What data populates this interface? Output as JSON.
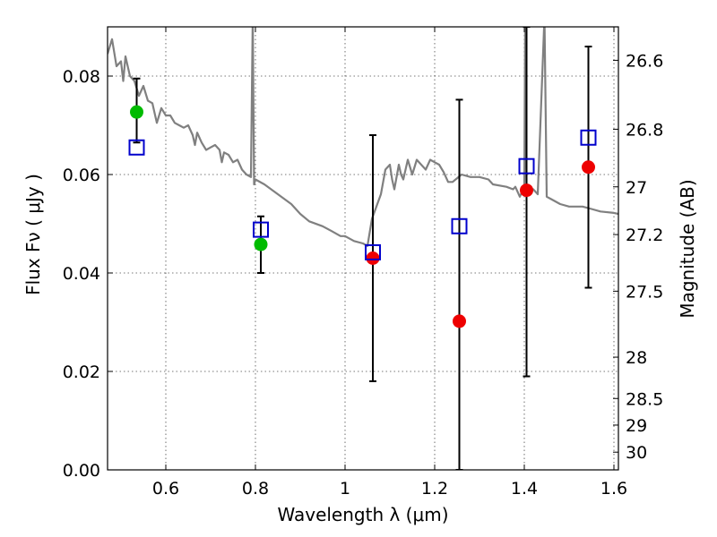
{
  "chart_data": {
    "type": "scatter",
    "xlabel": "Wavelength  λ (μm)",
    "ylabel": "Flux  Fν ( μJy )",
    "ylabel_right": "Magnitude (AB)",
    "xlim": [
      0.47,
      1.61
    ],
    "ylim": [
      0.0,
      0.09
    ],
    "x_ticks": [
      0.6,
      0.8,
      1.0,
      1.2,
      1.4,
      1.6
    ],
    "x_tick_labels": [
      "0.6",
      "0.8",
      "1",
      "1.2",
      "1.4",
      "1.6"
    ],
    "y_ticks": [
      0.0,
      0.02,
      0.04,
      0.06,
      0.08
    ],
    "y_tick_labels": [
      "0.00",
      "0.02",
      "0.04",
      "0.06",
      "0.08"
    ],
    "right_ticks": [
      {
        "label": "26.6",
        "flux": 0.0832
      },
      {
        "label": "26.8",
        "flux": 0.0692
      },
      {
        "label": "27",
        "flux": 0.0575
      },
      {
        "label": "27.2",
        "flux": 0.0478
      },
      {
        "label": "27.5",
        "flux": 0.0363
      },
      {
        "label": "28",
        "flux": 0.0229
      },
      {
        "label": "28.5",
        "flux": 0.0145
      },
      {
        "label": "29",
        "flux": 0.0091
      },
      {
        "label": "30",
        "flux": 0.0036
      }
    ],
    "grid": true,
    "colors": {
      "sed": "#808080",
      "green": "#00bb00",
      "red": "#ee0000",
      "model": "#0000cc",
      "errorbar": "#000000"
    },
    "series": [
      {
        "marker": "line",
        "points": [
          [
            0.47,
            0.0845
          ],
          [
            0.48,
            0.0875
          ],
          [
            0.49,
            0.082
          ],
          [
            0.5,
            0.083
          ],
          [
            0.505,
            0.079
          ],
          [
            0.51,
            0.084
          ],
          [
            0.52,
            0.08
          ],
          [
            0.53,
            0.079
          ],
          [
            0.54,
            0.076
          ],
          [
            0.55,
            0.078
          ],
          [
            0.56,
            0.075
          ],
          [
            0.57,
            0.0745
          ],
          [
            0.58,
            0.0705
          ],
          [
            0.59,
            0.0735
          ],
          [
            0.6,
            0.072
          ],
          [
            0.61,
            0.072
          ],
          [
            0.62,
            0.0705
          ],
          [
            0.63,
            0.07
          ],
          [
            0.64,
            0.0695
          ],
          [
            0.65,
            0.07
          ],
          [
            0.66,
            0.068
          ],
          [
            0.665,
            0.066
          ],
          [
            0.67,
            0.0685
          ],
          [
            0.68,
            0.0665
          ],
          [
            0.69,
            0.065
          ],
          [
            0.7,
            0.0655
          ],
          [
            0.71,
            0.066
          ],
          [
            0.72,
            0.065
          ],
          [
            0.725,
            0.0625
          ],
          [
            0.73,
            0.0645
          ],
          [
            0.74,
            0.064
          ],
          [
            0.75,
            0.0625
          ],
          [
            0.76,
            0.063
          ],
          [
            0.77,
            0.061
          ],
          [
            0.78,
            0.06
          ],
          [
            0.79,
            0.0595
          ],
          [
            0.794,
            0.092
          ],
          [
            0.797,
            0.058
          ],
          [
            0.8,
            0.059
          ],
          [
            0.82,
            0.058
          ],
          [
            0.85,
            0.056
          ],
          [
            0.88,
            0.054
          ],
          [
            0.9,
            0.052
          ],
          [
            0.92,
            0.0505
          ],
          [
            0.95,
            0.0495
          ],
          [
            0.97,
            0.0485
          ],
          [
            0.99,
            0.0475
          ],
          [
            1.0,
            0.0475
          ],
          [
            1.02,
            0.0465
          ],
          [
            1.04,
            0.046
          ],
          [
            1.05,
            0.0455
          ],
          [
            1.06,
            0.051
          ],
          [
            1.08,
            0.056
          ],
          [
            1.09,
            0.061
          ],
          [
            1.1,
            0.062
          ],
          [
            1.105,
            0.059
          ],
          [
            1.11,
            0.057
          ],
          [
            1.12,
            0.062
          ],
          [
            1.125,
            0.06
          ],
          [
            1.13,
            0.059
          ],
          [
            1.14,
            0.063
          ],
          [
            1.15,
            0.06
          ],
          [
            1.16,
            0.063
          ],
          [
            1.17,
            0.062
          ],
          [
            1.18,
            0.061
          ],
          [
            1.19,
            0.063
          ],
          [
            1.2,
            0.0625
          ],
          [
            1.21,
            0.062
          ],
          [
            1.22,
            0.0605
          ],
          [
            1.23,
            0.0585
          ],
          [
            1.24,
            0.0585
          ],
          [
            1.26,
            0.06
          ],
          [
            1.28,
            0.0595
          ],
          [
            1.3,
            0.0595
          ],
          [
            1.32,
            0.059
          ],
          [
            1.33,
            0.058
          ],
          [
            1.36,
            0.0575
          ],
          [
            1.375,
            0.057
          ],
          [
            1.38,
            0.0575
          ],
          [
            1.39,
            0.0555
          ],
          [
            1.4,
            0.0575
          ],
          [
            1.402,
            0.092
          ],
          [
            1.405,
            0.0575
          ],
          [
            1.42,
            0.057
          ],
          [
            1.43,
            0.056
          ],
          [
            1.445,
            0.092
          ],
          [
            1.45,
            0.0555
          ],
          [
            1.46,
            0.055
          ],
          [
            1.48,
            0.054
          ],
          [
            1.5,
            0.0535
          ],
          [
            1.53,
            0.0535
          ],
          [
            1.55,
            0.053
          ],
          [
            1.57,
            0.0525
          ],
          [
            1.6,
            0.0522
          ],
          [
            1.61,
            0.052
          ]
        ]
      },
      {
        "marker": "circle-green",
        "points": [
          {
            "x": 0.535,
            "y": 0.0727
          },
          {
            "x": 0.812,
            "y": 0.0458
          }
        ]
      },
      {
        "marker": "circle-red",
        "points": [
          {
            "x": 1.062,
            "y": 0.043
          },
          {
            "x": 1.255,
            "y": 0.0302
          },
          {
            "x": 1.405,
            "y": 0.0568
          },
          {
            "x": 1.543,
            "y": 0.0615
          }
        ]
      },
      {
        "marker": "square-open-blue",
        "points": [
          {
            "x": 0.535,
            "y": 0.0655
          },
          {
            "x": 0.812,
            "y": 0.0488
          },
          {
            "x": 1.062,
            "y": 0.0442
          },
          {
            "x": 1.255,
            "y": 0.0495
          },
          {
            "x": 1.405,
            "y": 0.0617
          },
          {
            "x": 1.543,
            "y": 0.0675
          }
        ]
      }
    ],
    "error_bars": [
      {
        "x": 0.535,
        "low": 0.0665,
        "high": 0.0795
      },
      {
        "x": 0.812,
        "low": 0.04,
        "high": 0.0515
      },
      {
        "x": 1.062,
        "low": 0.018,
        "high": 0.068
      },
      {
        "x": 1.255,
        "low": 0.0,
        "high": 0.0752
      },
      {
        "x": 1.405,
        "low": 0.019,
        "high": 0.09
      },
      {
        "x": 1.543,
        "low": 0.037,
        "high": 0.086
      }
    ]
  }
}
